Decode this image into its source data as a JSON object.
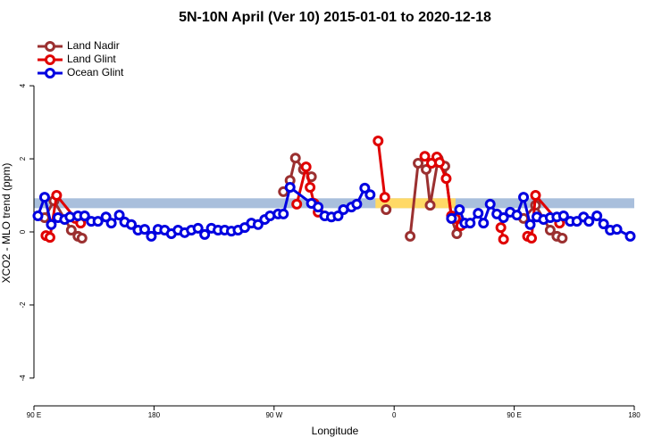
{
  "chart_data": {
    "type": "line",
    "title": "5N-10N April (Ver 10)   2015-01-01 to 2020-12-18",
    "x_label": "Longitude",
    "y_label": "XCO2 - MLO trend (ppm)",
    "xlim": [
      90,
      540
    ],
    "ylim": [
      -4.76,
      5.37
    ],
    "xticks": [
      {
        "value": 90,
        "label": "90 E"
      },
      {
        "value": 180,
        "label": "180"
      },
      {
        "value": 270,
        "label": "90 W"
      },
      {
        "value": 360,
        "label": "0"
      },
      {
        "value": 450,
        "label": "90 E"
      },
      {
        "value": 540,
        "label": "180"
      }
    ],
    "yticks": [
      -4,
      -2,
      0,
      2,
      4
    ],
    "band": {
      "ylim": [
        0.65,
        0.92
      ],
      "color": "#a9bfdc"
    },
    "highlight": {
      "xlim": [
        346,
        406
      ],
      "ylim": [
        0.65,
        0.92
      ],
      "color": "#ffd966"
    },
    "legend": "top-left",
    "series": [
      {
        "name": "Land Nadir",
        "color": "#9b3030",
        "x": [
          98,
          105,
          118,
          123,
          126,
          null,
          277,
          282,
          286,
          292,
          298,
          null,
          354,
          null,
          372,
          378,
          384,
          387,
          393,
          398,
          403,
          407,
          411,
          null,
          457,
          466,
          477,
          482,
          486
        ],
        "values": [
          0.39,
          0.85,
          0.05,
          -0.12,
          -0.17,
          null,
          1.1,
          1.41,
          2.02,
          1.71,
          1.51,
          null,
          0.61,
          null,
          -0.12,
          1.88,
          1.71,
          0.73,
          2.0,
          1.8,
          0.37,
          -0.05,
          0.24,
          null,
          0.37,
          0.73,
          0.05,
          -0.12,
          -0.17
        ]
      },
      {
        "name": "Land Glint",
        "color": "#e00000",
        "x": [
          99,
          102,
          107,
          121,
          125,
          null,
          287,
          294,
          297,
          300,
          303,
          null,
          348,
          353,
          null,
          383,
          388,
          392,
          394,
          399,
          403,
          406,
          410,
          null,
          440,
          442,
          null,
          460,
          463,
          466,
          484
        ],
        "values": [
          -0.1,
          -0.15,
          1.0,
          0.37,
          0.24,
          null,
          0.76,
          1.78,
          1.22,
          0.78,
          0.54,
          null,
          2.49,
          0.95,
          null,
          2.07,
          1.88,
          2.05,
          1.9,
          1.46,
          0.44,
          0.37,
          0.17,
          null,
          0.12,
          -0.2,
          null,
          -0.12,
          -0.17,
          1.0,
          0.24
        ]
      },
      {
        "name": "Ocean Glint",
        "color": "#0000e0",
        "x": [
          93,
          98,
          103,
          108,
          113,
          117,
          123,
          128,
          133,
          138,
          144,
          148,
          154,
          158,
          163,
          168,
          173,
          178,
          183,
          188,
          193,
          198,
          203,
          208,
          213,
          218,
          223,
          228,
          233,
          238,
          243,
          248,
          253,
          258,
          263,
          267,
          273,
          277,
          282,
          298,
          303,
          308,
          313,
          318,
          322,
          328,
          332,
          338,
          342,
          null,
          403,
          409,
          413,
          417,
          423,
          427,
          432,
          437,
          442,
          447,
          452,
          457,
          462,
          467,
          472,
          477,
          482,
          487,
          492,
          497,
          502,
          506,
          512,
          517,
          522,
          527,
          537
        ],
        "values": [
          0.44,
          0.95,
          0.2,
          0.39,
          0.34,
          0.41,
          0.44,
          0.44,
          0.29,
          0.29,
          0.41,
          0.24,
          0.46,
          0.27,
          0.2,
          0.05,
          0.07,
          -0.12,
          0.07,
          0.05,
          -0.05,
          0.05,
          -0.02,
          0.05,
          0.1,
          -0.07,
          0.1,
          0.05,
          0.05,
          0.02,
          0.05,
          0.12,
          0.24,
          0.2,
          0.34,
          0.44,
          0.49,
          0.49,
          1.22,
          0.78,
          0.68,
          0.44,
          0.41,
          0.44,
          0.61,
          0.68,
          0.76,
          1.2,
          1.02,
          null,
          0.37,
          0.61,
          0.24,
          0.24,
          0.51,
          0.24,
          0.76,
          0.49,
          0.39,
          0.54,
          0.46,
          0.95,
          0.2,
          0.41,
          0.34,
          0.39,
          0.41,
          0.44,
          0.29,
          0.29,
          0.41,
          0.29,
          0.44,
          0.22,
          0.05,
          0.07,
          -0.12
        ]
      }
    ]
  }
}
